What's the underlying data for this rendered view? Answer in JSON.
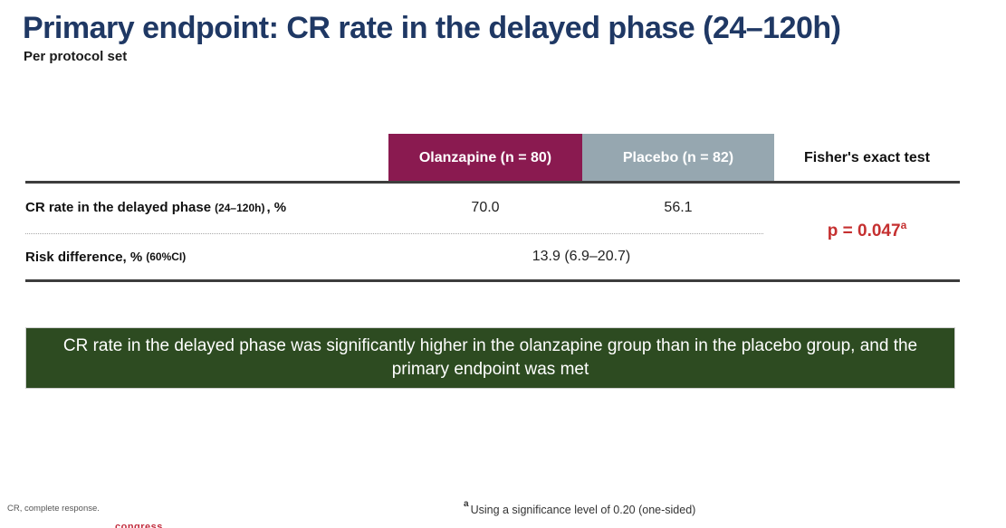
{
  "slide": {
    "title": "Primary endpoint: CR rate in the delayed phase (24–120h)",
    "subtitle": "Per protocol set"
  },
  "table": {
    "columns": [
      "Olanzapine (n = 80)",
      "Placebo (n = 82)",
      "Fisher's exact test"
    ],
    "rows": [
      {
        "label_main": "CR rate in the delayed phase",
        "label_detail": "(24–120h)",
        "label_suffix": ", %",
        "olanzapine": "70.0",
        "placebo": "56.1"
      },
      {
        "label_main": "Risk difference, %",
        "label_detail": "(60%CI)",
        "combined_value": "13.9 (6.9–20.7)"
      }
    ],
    "p_value": "p = 0.047",
    "p_value_superscript": "a"
  },
  "banner": {
    "text": "CR rate in the delayed phase was significantly higher in the olanzapine group than in the placebo group, and the primary endpoint was met"
  },
  "footer": {
    "abbreviation": "CR, complete response.",
    "footnote_marker": "a",
    "footnote_text": "Using a significance level of 0.20 (one-sided)",
    "partial_logo_text": "congress"
  },
  "colors": {
    "title_navy": "#1f3864",
    "olanzapine_header": "#8a1a50",
    "placebo_header": "#96a7b0",
    "banner_green": "#2d4b21",
    "p_value_red": "#c53030",
    "partial_logo_red": "#c12b3c"
  }
}
